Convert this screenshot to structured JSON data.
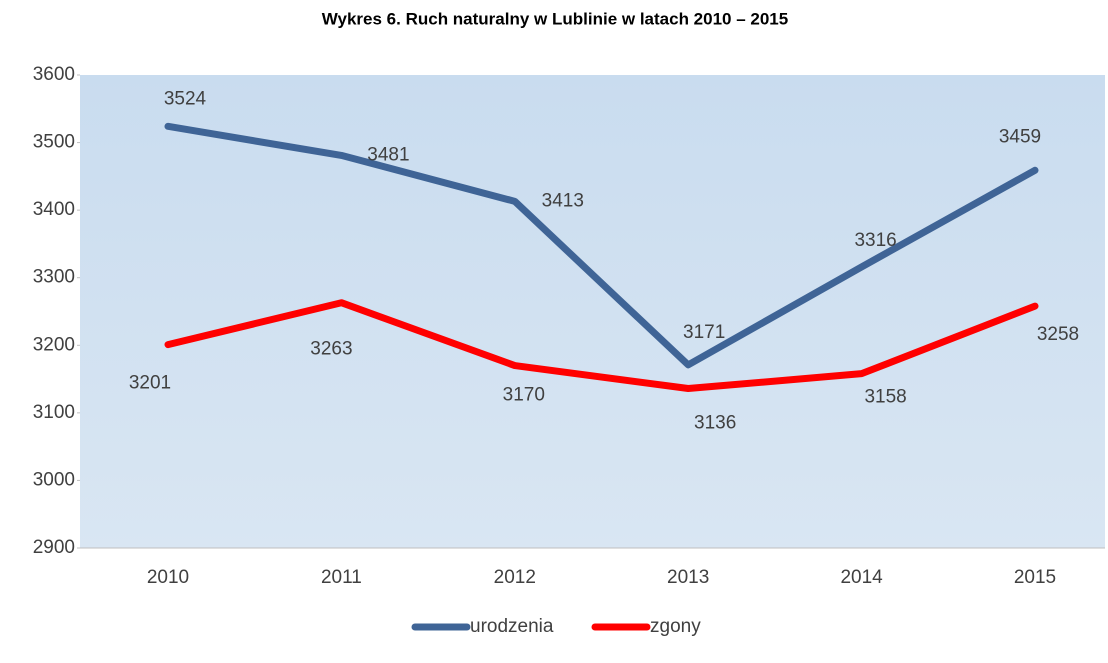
{
  "chart_data": {
    "type": "line",
    "title": "Wykres 6. Ruch naturalny w Lublinie w latach 2010 – 2015",
    "categories": [
      "2010",
      "2011",
      "2012",
      "2013",
      "2014",
      "2015"
    ],
    "series": [
      {
        "name": "urodzenia",
        "color": "#3f6496",
        "values": [
          3524,
          3481,
          3413,
          3171,
          3316,
          3459
        ]
      },
      {
        "name": "zgony",
        "color": "#ff0000",
        "values": [
          3201,
          3263,
          3170,
          3136,
          3158,
          3258
        ]
      }
    ],
    "ylim": [
      2900,
      3600
    ],
    "yticks": [
      2900,
      3000,
      3100,
      3200,
      3300,
      3400,
      3500,
      3600
    ],
    "legend": "bottom"
  }
}
